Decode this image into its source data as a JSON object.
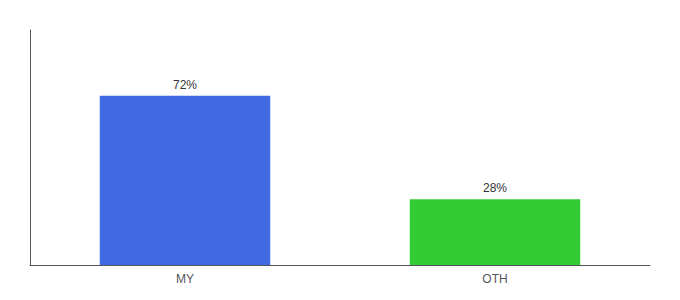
{
  "chart_data": {
    "type": "bar",
    "categories": [
      "MY",
      "OTH"
    ],
    "values": [
      72,
      28
    ],
    "value_labels": [
      "72%",
      "28%"
    ],
    "colors": [
      "#4169e1",
      "#33cc33"
    ],
    "ylim": [
      0,
      100
    ],
    "data_labels": true,
    "tick_labels": "x",
    "grid": false
  }
}
